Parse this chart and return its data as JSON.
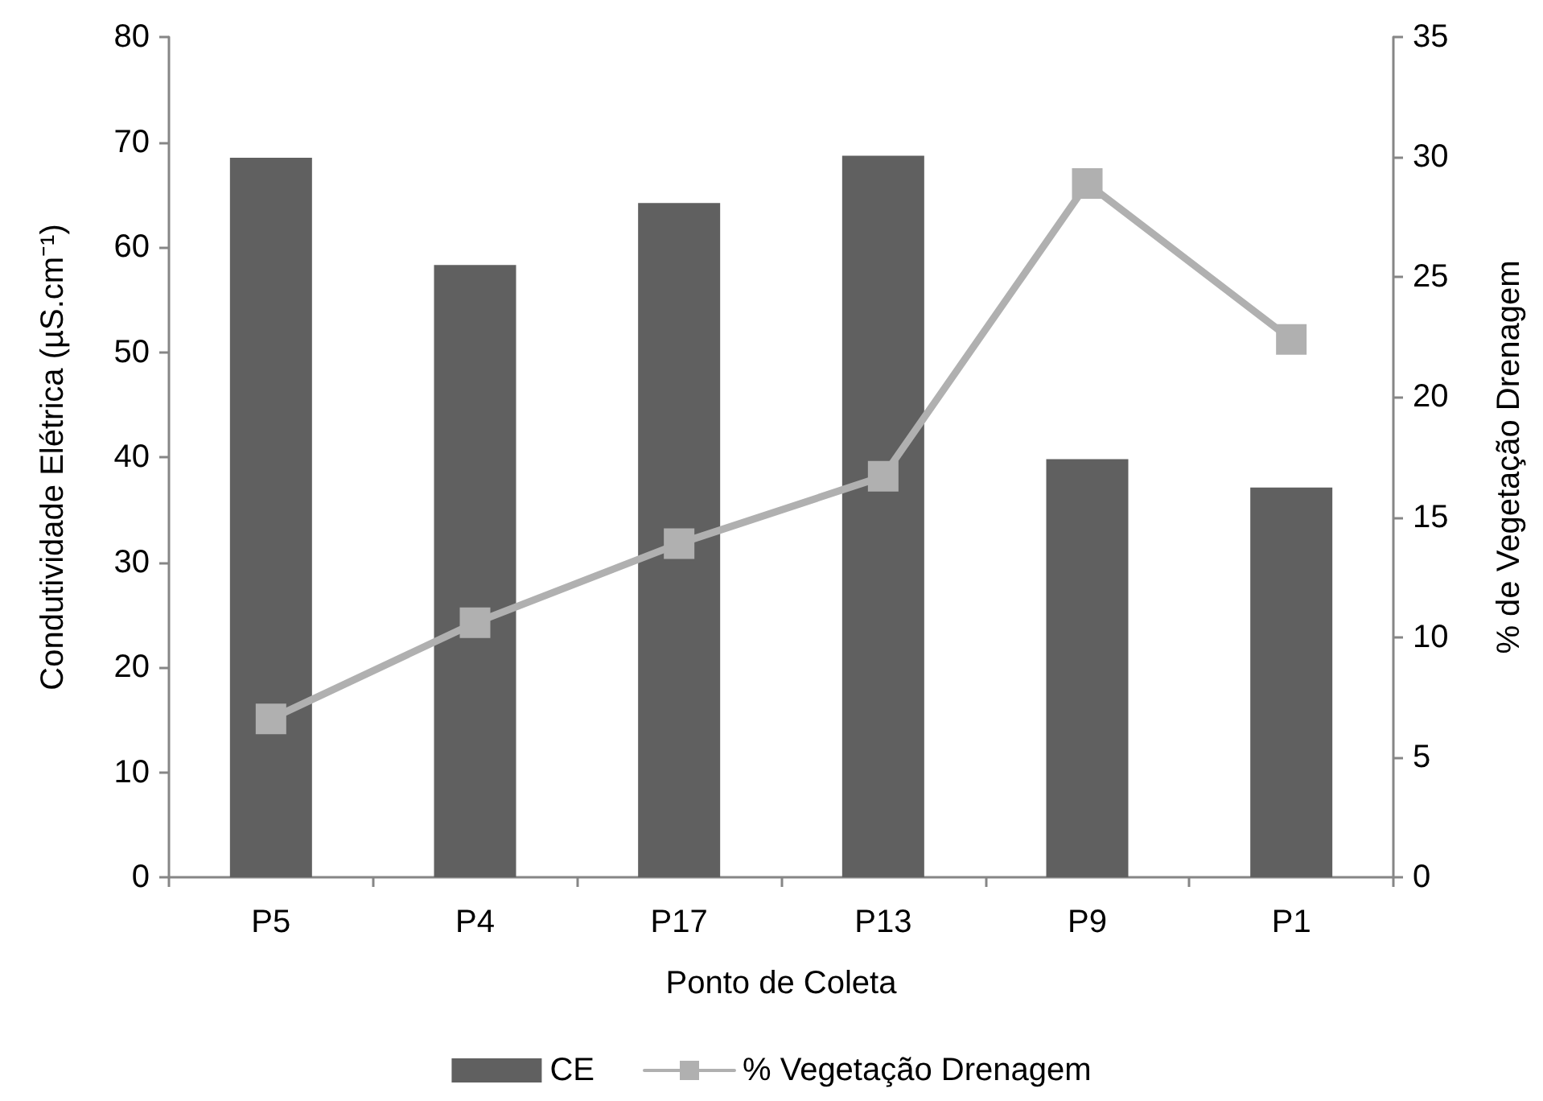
{
  "chart_data": {
    "type": "bar",
    "xlabel": "Ponto de Coleta",
    "ylabel": "Condutividade Elétrica (µS.cm⁻¹)",
    "y2label": "% de Vegetação Drenagem",
    "categories": [
      "P5",
      "P4",
      "P17",
      "P13",
      "P9",
      "P1"
    ],
    "series": [
      {
        "name": "CE",
        "color": "#606060",
        "values": [
          68.5,
          58.3,
          64.2,
          68.7,
          39.8,
          37.1
        ]
      },
      {
        "name": "% Vegetação Drenagem",
        "type": "line",
        "axis": "y2",
        "color": "#b0b0b0",
        "values": [
          6.6,
          10.6,
          13.9,
          16.7,
          28.9,
          22.4
        ]
      }
    ],
    "ylim": [
      0,
      80
    ],
    "yticks": [
      0,
      10,
      20,
      30,
      40,
      50,
      60,
      70,
      80
    ],
    "y2lim": [
      0,
      35
    ],
    "y2ticks": [
      0,
      5,
      10,
      15,
      20,
      25,
      30,
      35
    ],
    "grid": false,
    "legend": "bottom",
    "marker": "square",
    "line_style": "solid"
  }
}
